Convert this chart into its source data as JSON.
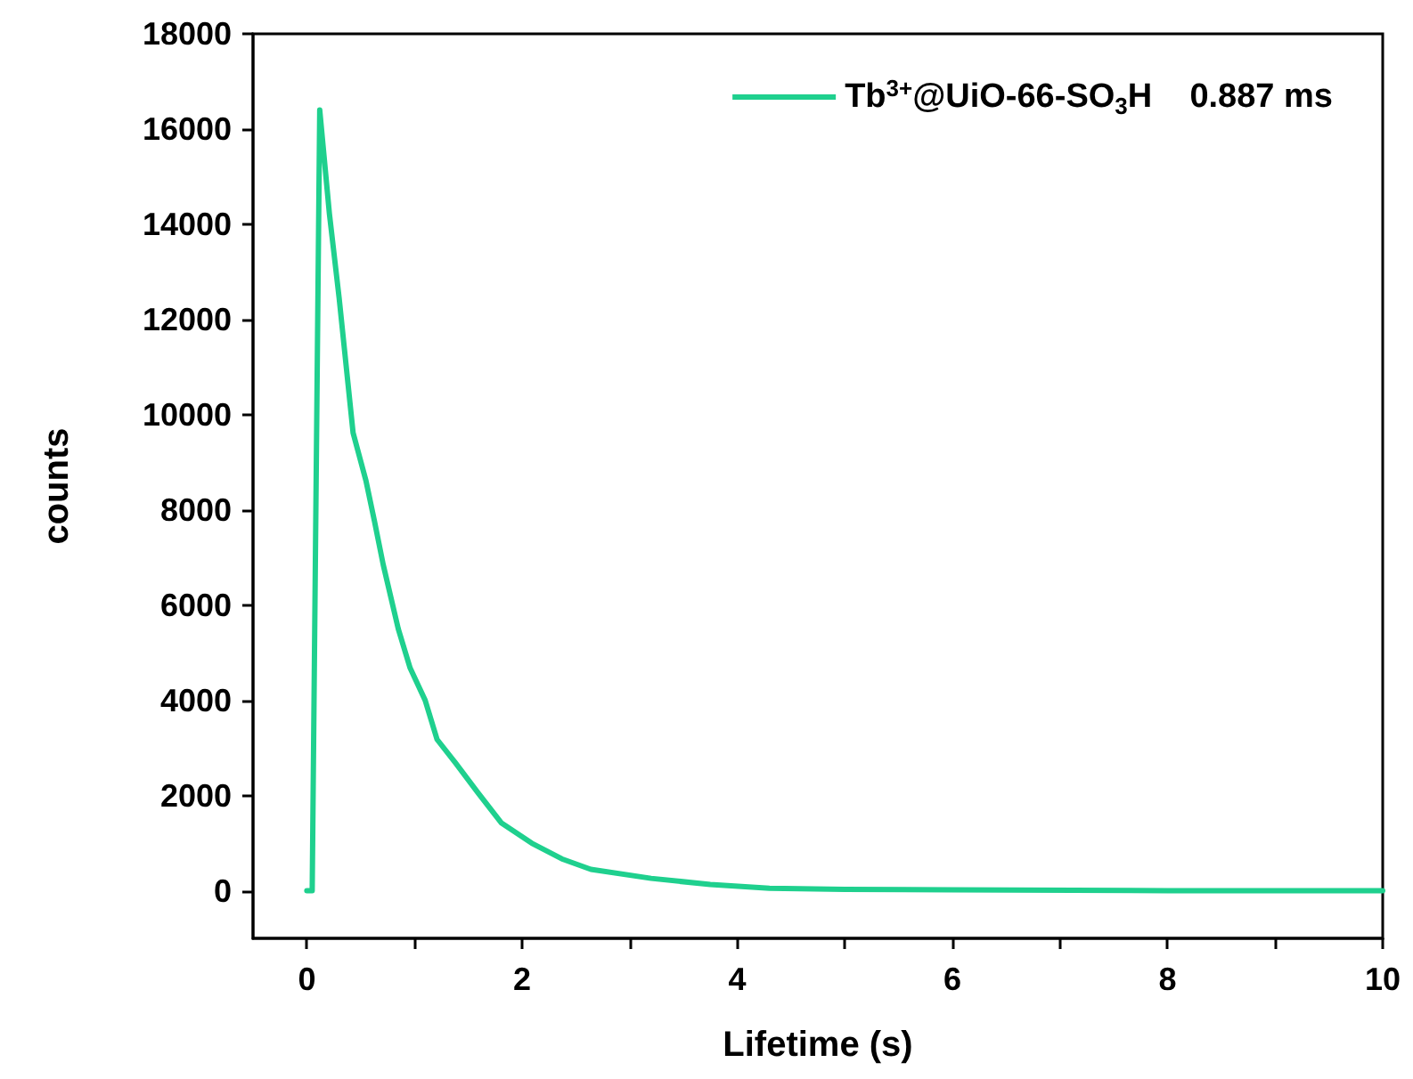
{
  "chart_data": {
    "type": "line",
    "xlabel": "Lifetime (s)",
    "ylabel": "counts",
    "series": [
      {
        "name": "Tb$^{3+}$@UiO-66-SO$_{3}$H    0.887 ms",
        "color": "#1fd08e",
        "x": [
          0,
          0.05,
          0.12,
          0.21,
          0.3,
          0.43,
          0.55,
          0.63,
          0.71,
          0.85,
          0.96,
          1.1,
          1.21,
          1.38,
          1.59,
          1.81,
          2.09,
          2.37,
          2.64,
          3.2,
          3.75,
          4.3,
          5,
          6,
          8,
          10
        ],
        "values": [
          0,
          0,
          16400,
          14220,
          12460,
          9620,
          8610,
          7750,
          6850,
          5500,
          4680,
          4000,
          3180,
          2690,
          2060,
          1420,
          1000,
          670,
          450,
          260,
          130,
          50,
          30,
          20,
          0,
          0
        ]
      }
    ],
    "xlim": [
      -0.5,
      10
    ],
    "ylim": [
      -1000,
      18000
    ],
    "xticks": [
      0,
      {
        "value": 1,
        "label": null
      },
      2,
      {
        "value": 3,
        "label": null
      },
      4,
      {
        "value": 5,
        "label": null
      },
      6,
      {
        "value": 7,
        "label": null
      },
      8,
      {
        "value": 9,
        "label": null
      },
      10
    ],
    "yticks": [
      0,
      2000,
      4000,
      6000,
      8000,
      10000,
      12000,
      14000,
      16000,
      18000
    ],
    "legend": "top right",
    "grid": false,
    "marker": "none",
    "line_style": "solid"
  }
}
